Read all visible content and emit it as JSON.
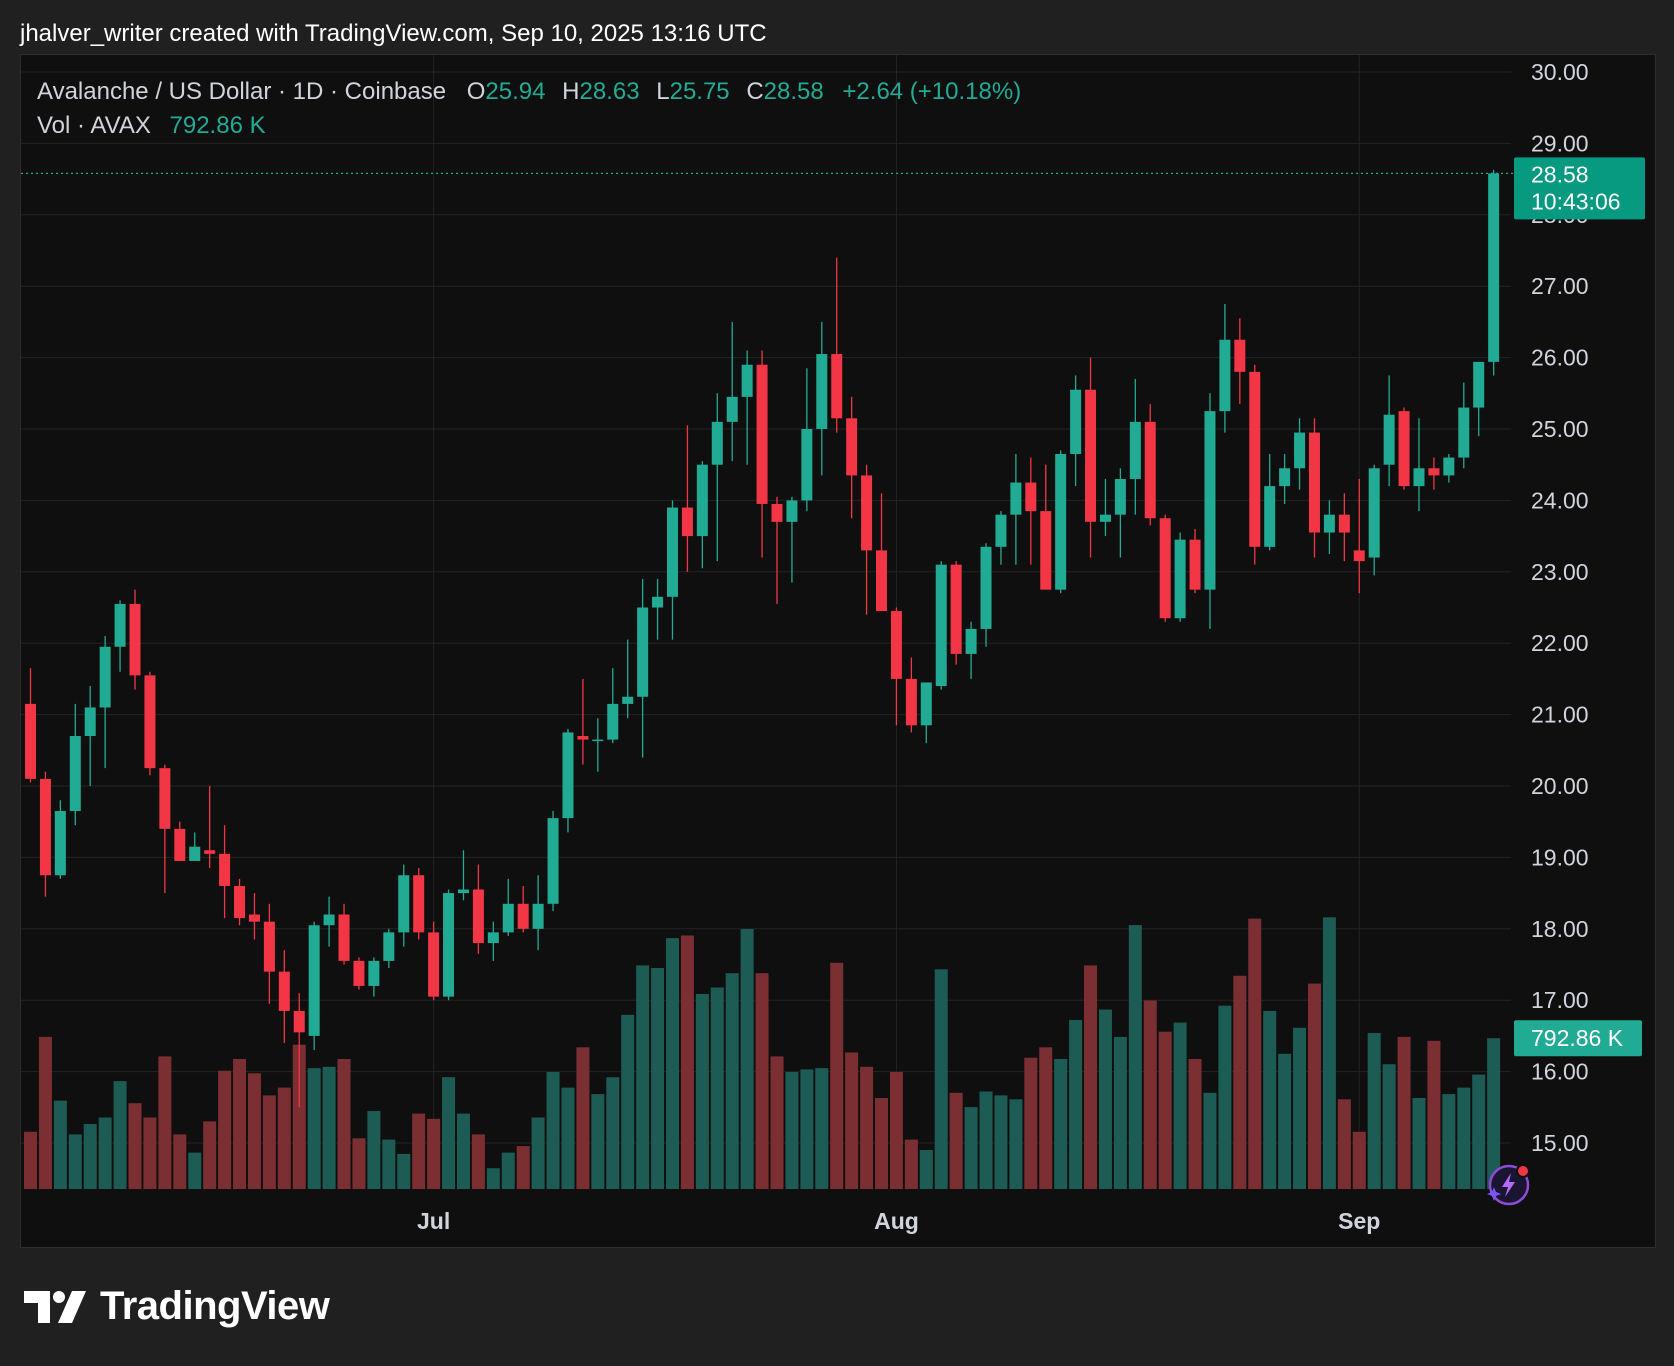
{
  "header": {
    "caption": "jhalver_writer created with TradingView.com, Sep 10, 2025 13:16 UTC"
  },
  "legend": {
    "symbol": "Avalanche / US Dollar · 1D · Coinbase",
    "o_label": "O",
    "o_value": "25.94",
    "h_label": "H",
    "h_value": "28.63",
    "l_label": "L",
    "l_value": "25.75",
    "c_label": "C",
    "c_value": "28.58",
    "change": "+2.64 (+10.18%)",
    "vol_label": "Vol · AVAX",
    "vol_value": "792.86 K"
  },
  "price_tag": {
    "price": "28.58",
    "countdown": "10:43:06"
  },
  "volume_tag": "792.86 K",
  "brand": {
    "name": "TradingView"
  },
  "colors": {
    "up": "#22ab94",
    "down": "#f23645",
    "vol_up": "#1d5b55",
    "vol_down": "#7c2f33",
    "grid": "#232323",
    "axis_text": "#d1d4dc"
  },
  "chart_data": {
    "type": "candlestick",
    "symbol": "AVAX/USD",
    "interval": "1D",
    "y_ticks": [
      "15.00",
      "16.00",
      "17.00",
      "18.00",
      "19.00",
      "20.00",
      "21.00",
      "22.00",
      "23.00",
      "24.00",
      "25.00",
      "26.00",
      "27.00",
      "28.00",
      "29.00",
      "30.00"
    ],
    "ylim": [
      14.5,
      30.0
    ],
    "x_ticks": [
      {
        "label": "Jul",
        "index": 27
      },
      {
        "label": "Aug",
        "index": 58
      },
      {
        "label": "Sep",
        "index": 89
      }
    ],
    "volume_max": 2000,
    "last_price": 28.58,
    "candles": [
      {
        "o": 21.15,
        "h": 21.65,
        "l": 20.05,
        "c": 20.1,
        "v": 440
      },
      {
        "o": 20.1,
        "h": 20.2,
        "l": 18.45,
        "c": 18.75,
        "v": 1170
      },
      {
        "o": 18.75,
        "h": 19.8,
        "l": 18.7,
        "c": 19.65,
        "v": 680
      },
      {
        "o": 19.65,
        "h": 21.15,
        "l": 19.45,
        "c": 20.7,
        "v": 420
      },
      {
        "o": 20.7,
        "h": 21.4,
        "l": 20.0,
        "c": 21.1,
        "v": 500
      },
      {
        "o": 21.1,
        "h": 22.1,
        "l": 20.25,
        "c": 21.95,
        "v": 550
      },
      {
        "o": 21.95,
        "h": 22.6,
        "l": 21.6,
        "c": 22.55,
        "v": 830
      },
      {
        "o": 22.55,
        "h": 22.75,
        "l": 21.35,
        "c": 21.55,
        "v": 660
      },
      {
        "o": 21.55,
        "h": 21.6,
        "l": 20.15,
        "c": 20.25,
        "v": 550
      },
      {
        "o": 20.25,
        "h": 20.3,
        "l": 18.5,
        "c": 19.4,
        "v": 1020
      },
      {
        "o": 19.4,
        "h": 19.5,
        "l": 18.95,
        "c": 18.95,
        "v": 420
      },
      {
        "o": 18.95,
        "h": 19.35,
        "l": 18.95,
        "c": 19.15,
        "v": 280
      },
      {
        "o": 19.1,
        "h": 20.0,
        "l": 18.85,
        "c": 19.05,
        "v": 520
      },
      {
        "o": 19.05,
        "h": 19.45,
        "l": 18.15,
        "c": 18.6,
        "v": 910
      },
      {
        "o": 18.6,
        "h": 18.7,
        "l": 18.05,
        "c": 18.15,
        "v": 1000
      },
      {
        "o": 18.2,
        "h": 18.5,
        "l": 17.85,
        "c": 18.1,
        "v": 890
      },
      {
        "o": 18.1,
        "h": 18.35,
        "l": 16.95,
        "c": 17.4,
        "v": 720
      },
      {
        "o": 17.4,
        "h": 17.7,
        "l": 16.4,
        "c": 16.85,
        "v": 780
      },
      {
        "o": 16.85,
        "h": 17.1,
        "l": 15.5,
        "c": 16.55,
        "v": 1110
      },
      {
        "o": 16.5,
        "h": 18.1,
        "l": 16.3,
        "c": 18.05,
        "v": 930
      },
      {
        "o": 18.05,
        "h": 18.45,
        "l": 17.75,
        "c": 18.2,
        "v": 940
      },
      {
        "o": 18.2,
        "h": 18.35,
        "l": 17.5,
        "c": 17.55,
        "v": 1000
      },
      {
        "o": 17.55,
        "h": 17.6,
        "l": 17.15,
        "c": 17.2,
        "v": 390
      },
      {
        "o": 17.2,
        "h": 17.6,
        "l": 17.05,
        "c": 17.55,
        "v": 600
      },
      {
        "o": 17.55,
        "h": 18.0,
        "l": 17.45,
        "c": 17.95,
        "v": 380
      },
      {
        "o": 17.95,
        "h": 18.9,
        "l": 17.75,
        "c": 18.75,
        "v": 270
      },
      {
        "o": 18.75,
        "h": 18.85,
        "l": 17.85,
        "c": 17.95,
        "v": 580
      },
      {
        "o": 17.95,
        "h": 18.1,
        "l": 17.0,
        "c": 17.05,
        "v": 540
      },
      {
        "o": 17.05,
        "h": 18.55,
        "l": 17.0,
        "c": 18.5,
        "v": 860
      },
      {
        "o": 18.5,
        "h": 19.1,
        "l": 18.4,
        "c": 18.55,
        "v": 580
      },
      {
        "o": 18.55,
        "h": 18.9,
        "l": 17.65,
        "c": 17.8,
        "v": 420
      },
      {
        "o": 17.8,
        "h": 18.1,
        "l": 17.55,
        "c": 17.95,
        "v": 160
      },
      {
        "o": 17.95,
        "h": 18.7,
        "l": 17.9,
        "c": 18.35,
        "v": 280
      },
      {
        "o": 18.35,
        "h": 18.6,
        "l": 17.95,
        "c": 18.0,
        "v": 330
      },
      {
        "o": 18.0,
        "h": 18.75,
        "l": 17.7,
        "c": 18.35,
        "v": 550
      },
      {
        "o": 18.35,
        "h": 19.65,
        "l": 18.25,
        "c": 19.55,
        "v": 900
      },
      {
        "o": 19.55,
        "h": 20.8,
        "l": 19.35,
        "c": 20.75,
        "v": 780
      },
      {
        "o": 20.7,
        "h": 21.5,
        "l": 20.3,
        "c": 20.65,
        "v": 1090
      },
      {
        "o": 20.65,
        "h": 20.95,
        "l": 20.2,
        "c": 20.65,
        "v": 730
      },
      {
        "o": 20.65,
        "h": 21.65,
        "l": 20.6,
        "c": 21.15,
        "v": 860
      },
      {
        "o": 21.15,
        "h": 22.05,
        "l": 20.95,
        "c": 21.25,
        "v": 1340
      },
      {
        "o": 21.25,
        "h": 22.9,
        "l": 20.4,
        "c": 22.5,
        "v": 1720
      },
      {
        "o": 22.5,
        "h": 22.9,
        "l": 22.05,
        "c": 22.65,
        "v": 1700
      },
      {
        "o": 22.65,
        "h": 24.0,
        "l": 22.05,
        "c": 23.9,
        "v": 1930
      },
      {
        "o": 23.9,
        "h": 25.05,
        "l": 23.0,
        "c": 23.5,
        "v": 1950
      },
      {
        "o": 23.5,
        "h": 24.55,
        "l": 23.05,
        "c": 24.5,
        "v": 1500
      },
      {
        "o": 24.5,
        "h": 25.5,
        "l": 23.15,
        "c": 25.1,
        "v": 1550
      },
      {
        "o": 25.1,
        "h": 26.5,
        "l": 24.55,
        "c": 25.45,
        "v": 1660
      },
      {
        "o": 25.45,
        "h": 26.1,
        "l": 24.5,
        "c": 25.9,
        "v": 2000
      },
      {
        "o": 25.9,
        "h": 26.1,
        "l": 23.2,
        "c": 23.95,
        "v": 1660
      },
      {
        "o": 23.95,
        "h": 24.05,
        "l": 22.55,
        "c": 23.7,
        "v": 1020
      },
      {
        "o": 23.7,
        "h": 24.05,
        "l": 22.85,
        "c": 24.0,
        "v": 900
      },
      {
        "o": 24.0,
        "h": 25.85,
        "l": 23.85,
        "c": 25.0,
        "v": 920
      },
      {
        "o": 25.0,
        "h": 26.5,
        "l": 24.35,
        "c": 26.05,
        "v": 930
      },
      {
        "o": 26.05,
        "h": 27.4,
        "l": 24.95,
        "c": 25.15,
        "v": 1740
      },
      {
        "o": 25.15,
        "h": 25.45,
        "l": 23.75,
        "c": 24.35,
        "v": 1050
      },
      {
        "o": 24.35,
        "h": 24.5,
        "l": 22.4,
        "c": 23.3,
        "v": 940
      },
      {
        "o": 23.3,
        "h": 24.1,
        "l": 22.45,
        "c": 22.45,
        "v": 700
      },
      {
        "o": 22.45,
        "h": 22.5,
        "l": 20.85,
        "c": 21.5,
        "v": 900
      },
      {
        "o": 21.5,
        "h": 21.8,
        "l": 20.75,
        "c": 20.85,
        "v": 380
      },
      {
        "o": 20.85,
        "h": 21.45,
        "l": 20.6,
        "c": 21.45,
        "v": 300
      },
      {
        "o": 21.4,
        "h": 23.15,
        "l": 21.35,
        "c": 23.1,
        "v": 1690
      },
      {
        "o": 23.1,
        "h": 23.15,
        "l": 21.7,
        "c": 21.85,
        "v": 740
      },
      {
        "o": 21.85,
        "h": 22.3,
        "l": 21.5,
        "c": 22.2,
        "v": 630
      },
      {
        "o": 22.2,
        "h": 23.4,
        "l": 21.95,
        "c": 23.35,
        "v": 750
      },
      {
        "o": 23.35,
        "h": 23.85,
        "l": 23.1,
        "c": 23.8,
        "v": 720
      },
      {
        "o": 23.8,
        "h": 24.65,
        "l": 23.1,
        "c": 24.25,
        "v": 690
      },
      {
        "o": 24.25,
        "h": 24.6,
        "l": 23.1,
        "c": 23.85,
        "v": 1010
      },
      {
        "o": 23.85,
        "h": 24.5,
        "l": 22.75,
        "c": 22.75,
        "v": 1090
      },
      {
        "o": 22.75,
        "h": 24.7,
        "l": 22.7,
        "c": 24.65,
        "v": 1000
      },
      {
        "o": 24.65,
        "h": 25.75,
        "l": 24.2,
        "c": 25.55,
        "v": 1300
      },
      {
        "o": 25.55,
        "h": 26.0,
        "l": 23.2,
        "c": 23.7,
        "v": 1720
      },
      {
        "o": 23.7,
        "h": 24.3,
        "l": 23.5,
        "c": 23.8,
        "v": 1380
      },
      {
        "o": 23.8,
        "h": 24.45,
        "l": 23.2,
        "c": 24.3,
        "v": 1170
      },
      {
        "o": 24.3,
        "h": 25.7,
        "l": 23.8,
        "c": 25.1,
        "v": 2030
      },
      {
        "o": 25.1,
        "h": 25.35,
        "l": 23.65,
        "c": 23.75,
        "v": 1450
      },
      {
        "o": 23.75,
        "h": 23.8,
        "l": 22.3,
        "c": 22.35,
        "v": 1210
      },
      {
        "o": 22.35,
        "h": 23.55,
        "l": 22.3,
        "c": 23.45,
        "v": 1280
      },
      {
        "o": 23.45,
        "h": 23.6,
        "l": 22.7,
        "c": 22.75,
        "v": 1000
      },
      {
        "o": 22.75,
        "h": 25.5,
        "l": 22.2,
        "c": 25.25,
        "v": 740
      },
      {
        "o": 25.25,
        "h": 26.75,
        "l": 24.95,
        "c": 26.25,
        "v": 1410
      },
      {
        "o": 26.25,
        "h": 26.55,
        "l": 25.35,
        "c": 25.8,
        "v": 1640
      },
      {
        "o": 25.8,
        "h": 25.9,
        "l": 23.1,
        "c": 23.35,
        "v": 2080
      },
      {
        "o": 23.35,
        "h": 24.65,
        "l": 23.3,
        "c": 24.2,
        "v": 1370
      },
      {
        "o": 24.2,
        "h": 24.65,
        "l": 23.95,
        "c": 24.45,
        "v": 1040
      },
      {
        "o": 24.45,
        "h": 25.15,
        "l": 24.15,
        "c": 24.95,
        "v": 1240
      },
      {
        "o": 24.95,
        "h": 25.15,
        "l": 23.2,
        "c": 23.55,
        "v": 1580
      },
      {
        "o": 23.55,
        "h": 24.0,
        "l": 23.25,
        "c": 23.8,
        "v": 2090
      },
      {
        "o": 23.8,
        "h": 24.1,
        "l": 23.15,
        "c": 23.55,
        "v": 690
      },
      {
        "o": 23.3,
        "h": 24.3,
        "l": 22.7,
        "c": 23.15,
        "v": 440
      },
      {
        "o": 23.2,
        "h": 24.5,
        "l": 22.95,
        "c": 24.45,
        "v": 1200
      },
      {
        "o": 24.5,
        "h": 25.75,
        "l": 24.2,
        "c": 25.2,
        "v": 960
      },
      {
        "o": 25.25,
        "h": 25.3,
        "l": 24.15,
        "c": 24.2,
        "v": 1170
      },
      {
        "o": 24.2,
        "h": 25.15,
        "l": 23.85,
        "c": 24.45,
        "v": 700
      },
      {
        "o": 24.45,
        "h": 24.6,
        "l": 24.15,
        "c": 24.35,
        "v": 1140
      },
      {
        "o": 24.35,
        "h": 24.65,
        "l": 24.25,
        "c": 24.6,
        "v": 730
      },
      {
        "o": 24.6,
        "h": 25.65,
        "l": 24.45,
        "c": 25.3,
        "v": 780
      },
      {
        "o": 25.3,
        "h": 25.8,
        "l": 24.9,
        "c": 25.94,
        "v": 880
      },
      {
        "o": 25.94,
        "h": 28.63,
        "l": 25.75,
        "c": 28.58,
        "v": 1160
      }
    ]
  }
}
